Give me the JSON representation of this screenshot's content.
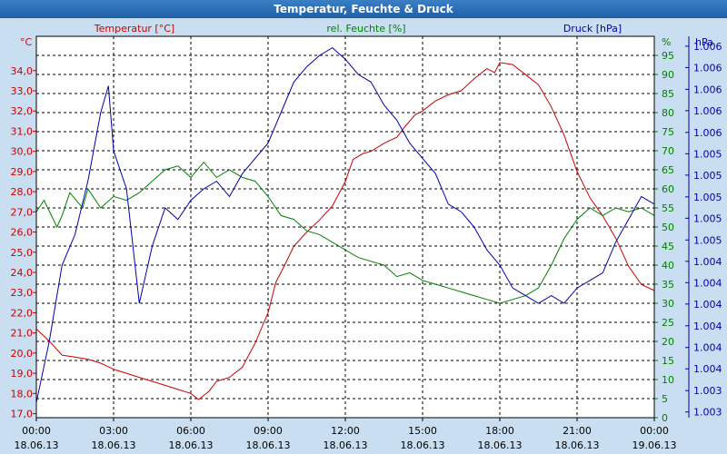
{
  "window": {
    "title": "Temperatur, Feuchte & Druck"
  },
  "colors": {
    "temp": "#cc0000",
    "hum": "#008000",
    "press": "#0000aa",
    "grid": "#000000",
    "bg": "#ffffff",
    "frame": "#c9dff1"
  },
  "chart_data": {
    "type": "line",
    "title": "Temperatur, Feuchte & Druck",
    "x_ticks": [
      {
        "hour": 0,
        "time": "00:00",
        "date": "18.06.13"
      },
      {
        "hour": 3,
        "time": "03:00",
        "date": "18.06.13"
      },
      {
        "hour": 6,
        "time": "06:00",
        "date": "18.06.13"
      },
      {
        "hour": 9,
        "time": "09:00",
        "date": "18.06.13"
      },
      {
        "hour": 12,
        "time": "12:00",
        "date": "18.06.13"
      },
      {
        "hour": 15,
        "time": "15:00",
        "date": "18.06.13"
      },
      {
        "hour": 18,
        "time": "18:00",
        "date": "18.06.13"
      },
      {
        "hour": 21,
        "time": "21:00",
        "date": "18.06.13"
      },
      {
        "hour": 24,
        "time": "00:00",
        "date": "19.06.13"
      }
    ],
    "xlim": [
      0,
      24
    ],
    "axes": {
      "temp": {
        "label": "Temperatur [°C]",
        "unit": "°C",
        "ylim": [
          16.8,
          35.7
        ],
        "ticks": [
          "17,0",
          "18,0",
          "19,0",
          "20,0",
          "21,0",
          "22,0",
          "23,0",
          "24,0",
          "25,0",
          "26,0",
          "27,0",
          "28,0",
          "29,0",
          "30,0",
          "31,0",
          "32,0",
          "33,0",
          "34,0"
        ],
        "tick_values": [
          17,
          18,
          19,
          20,
          21,
          22,
          23,
          24,
          25,
          26,
          27,
          28,
          29,
          30,
          31,
          32,
          33,
          34
        ]
      },
      "hum": {
        "label": "rel. Feuchte [%]",
        "unit": "%",
        "ylim": [
          0,
          100
        ],
        "ticks": [
          "0",
          "5",
          "10",
          "15",
          "20",
          "25",
          "30",
          "35",
          "40",
          "45",
          "50",
          "55",
          "60",
          "65",
          "70",
          "75",
          "80",
          "85",
          "90",
          "95"
        ],
        "tick_values": [
          0,
          5,
          10,
          15,
          20,
          25,
          30,
          35,
          40,
          45,
          50,
          55,
          60,
          65,
          70,
          75,
          80,
          85,
          90,
          95
        ]
      },
      "press": {
        "label": "Druck [hPa]",
        "unit": "hPa",
        "ylim": [
          0,
          100
        ],
        "ticks": [
          "1.003",
          "1.003",
          "1.004",
          "1.004",
          "1.004",
          "1.004",
          "1.004",
          "1.004",
          "1.005",
          "1.005",
          "1.005",
          "1.005",
          "1.005",
          "1.006",
          "1.006",
          "1.006",
          "1.006",
          "1.006"
        ],
        "tick_positions": [
          1.5,
          7.1,
          12.8,
          18.4,
          24.1,
          29.8,
          35.4,
          41,
          46.6,
          52.3,
          57.9,
          63.6,
          69.2,
          74.8,
          80.5,
          86.1,
          91.8,
          97.4
        ]
      }
    },
    "series": [
      {
        "name": "Temperatur",
        "axis": "temp",
        "points": [
          [
            0,
            21.2
          ],
          [
            0.5,
            20.6
          ],
          [
            1,
            19.9
          ],
          [
            1.5,
            19.8
          ],
          [
            2,
            19.7
          ],
          [
            2.5,
            19.5
          ],
          [
            3,
            19.2
          ],
          [
            3.5,
            19.0
          ],
          [
            4,
            18.8
          ],
          [
            4.5,
            18.6
          ],
          [
            5,
            18.4
          ],
          [
            5.5,
            18.2
          ],
          [
            6,
            18.0
          ],
          [
            6.3,
            17.7
          ],
          [
            6.7,
            18.1
          ],
          [
            7,
            18.6
          ],
          [
            7.5,
            18.8
          ],
          [
            8,
            19.3
          ],
          [
            8.5,
            20.5
          ],
          [
            9,
            22.0
          ],
          [
            9.3,
            23.5
          ],
          [
            9.7,
            24.5
          ],
          [
            10,
            25.3
          ],
          [
            10.5,
            26.0
          ],
          [
            11,
            26.6
          ],
          [
            11.5,
            27.3
          ],
          [
            12,
            28.5
          ],
          [
            12.3,
            29.6
          ],
          [
            12.7,
            29.9
          ],
          [
            13,
            30.0
          ],
          [
            13.5,
            30.4
          ],
          [
            14,
            30.7
          ],
          [
            14.3,
            31.2
          ],
          [
            14.7,
            31.8
          ],
          [
            15,
            32.0
          ],
          [
            15.5,
            32.5
          ],
          [
            16,
            32.8
          ],
          [
            16.5,
            33.0
          ],
          [
            17,
            33.6
          ],
          [
            17.5,
            34.1
          ],
          [
            17.8,
            33.9
          ],
          [
            18,
            34.4
          ],
          [
            18.5,
            34.3
          ],
          [
            19,
            33.8
          ],
          [
            19.5,
            33.3
          ],
          [
            20,
            32.2
          ],
          [
            20.5,
            30.8
          ],
          [
            21,
            29.0
          ],
          [
            21.5,
            27.7
          ],
          [
            22,
            26.8
          ],
          [
            22.5,
            25.7
          ],
          [
            23,
            24.3
          ],
          [
            23.5,
            23.4
          ],
          [
            24,
            23.1
          ]
        ]
      },
      {
        "name": "rel. Feuchte",
        "axis": "hum",
        "points": [
          [
            0,
            54
          ],
          [
            0.3,
            57
          ],
          [
            0.8,
            50
          ],
          [
            1,
            53
          ],
          [
            1.3,
            59
          ],
          [
            1.8,
            55
          ],
          [
            2,
            60
          ],
          [
            2.5,
            55
          ],
          [
            3,
            58
          ],
          [
            3.5,
            57
          ],
          [
            4,
            59
          ],
          [
            4.5,
            62
          ],
          [
            5,
            65
          ],
          [
            5.5,
            66
          ],
          [
            6,
            63
          ],
          [
            6.5,
            67
          ],
          [
            7,
            63
          ],
          [
            7.5,
            65
          ],
          [
            8,
            63
          ],
          [
            8.5,
            62
          ],
          [
            9,
            58
          ],
          [
            9.5,
            53
          ],
          [
            10,
            52
          ],
          [
            10.5,
            49
          ],
          [
            11,
            48
          ],
          [
            11.5,
            46
          ],
          [
            12,
            44
          ],
          [
            12.5,
            42
          ],
          [
            13,
            41
          ],
          [
            13.5,
            40
          ],
          [
            14,
            37
          ],
          [
            14.5,
            38
          ],
          [
            15,
            36
          ],
          [
            15.5,
            35
          ],
          [
            16,
            34
          ],
          [
            16.5,
            33
          ],
          [
            17,
            32
          ],
          [
            17.5,
            31
          ],
          [
            18,
            30
          ],
          [
            18.5,
            31
          ],
          [
            19,
            32
          ],
          [
            19.5,
            34
          ],
          [
            20,
            40
          ],
          [
            20.5,
            47
          ],
          [
            21,
            52
          ],
          [
            21.5,
            55
          ],
          [
            22,
            53
          ],
          [
            22.5,
            55
          ],
          [
            23,
            54
          ],
          [
            23.5,
            55
          ],
          [
            24,
            53
          ]
        ]
      },
      {
        "name": "Druck",
        "axis": "press",
        "points": [
          [
            0,
            4
          ],
          [
            0.5,
            20
          ],
          [
            1,
            40
          ],
          [
            1.5,
            48
          ],
          [
            2,
            62
          ],
          [
            2.5,
            80
          ],
          [
            2.8,
            87
          ],
          [
            3,
            70
          ],
          [
            3.5,
            60
          ],
          [
            4,
            30
          ],
          [
            4.5,
            45
          ],
          [
            5,
            55
          ],
          [
            5.5,
            52
          ],
          [
            6,
            57
          ],
          [
            6.5,
            60
          ],
          [
            7,
            62
          ],
          [
            7.5,
            58
          ],
          [
            8,
            64
          ],
          [
            8.5,
            68
          ],
          [
            9,
            72
          ],
          [
            9.5,
            80
          ],
          [
            10,
            88
          ],
          [
            10.5,
            92
          ],
          [
            11,
            95
          ],
          [
            11.5,
            97
          ],
          [
            12,
            94
          ],
          [
            12.5,
            90
          ],
          [
            13,
            88
          ],
          [
            13.5,
            82
          ],
          [
            14,
            78
          ],
          [
            14.5,
            72
          ],
          [
            15,
            68
          ],
          [
            15.5,
            64
          ],
          [
            16,
            56
          ],
          [
            16.5,
            54
          ],
          [
            17,
            50
          ],
          [
            17.5,
            44
          ],
          [
            18,
            40
          ],
          [
            18.5,
            34
          ],
          [
            19,
            32
          ],
          [
            19.5,
            30
          ],
          [
            20,
            32
          ],
          [
            20.5,
            30
          ],
          [
            21,
            34
          ],
          [
            21.5,
            36
          ],
          [
            22,
            38
          ],
          [
            22.5,
            46
          ],
          [
            23,
            52
          ],
          [
            23.5,
            58
          ],
          [
            24,
            56
          ]
        ]
      }
    ]
  }
}
